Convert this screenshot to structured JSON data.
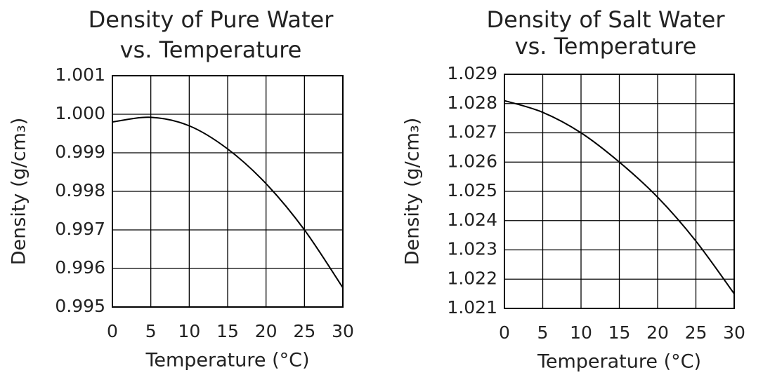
{
  "chart_data": [
    {
      "type": "line",
      "title": [
        "Density of Pure Water",
        "vs. Temperature"
      ],
      "x_label": "Temperature (°C)",
      "y_label": "Density (g/cm₃)",
      "x": [
        0,
        5,
        10,
        15,
        20,
        25,
        30
      ],
      "series": [
        {
          "color": "#000000",
          "values": [
            0.9998,
            0.99992,
            0.9997,
            0.9991,
            0.9982,
            0.997,
            0.9955
          ]
        }
      ],
      "xlim": [
        0,
        30
      ],
      "xticks": [
        0,
        5,
        10,
        15,
        20,
        25,
        30
      ],
      "ylim": [
        0.995,
        1.001
      ],
      "yticks": [
        0.995,
        0.996,
        0.997,
        0.998,
        0.999,
        {
          "value": 1.0,
          "label": "1.000"
        },
        1.001
      ],
      "grid": true
    },
    {
      "type": "line",
      "title": [
        "Density of Salt Water",
        "vs. Temperature"
      ],
      "x_label": "Temperature (°C)",
      "y_label": "Density (g/cm₃)",
      "x": [
        0,
        5,
        10,
        15,
        20,
        25,
        30
      ],
      "series": [
        {
          "color": "#000000",
          "values": [
            1.0281,
            1.0277,
            1.027,
            1.026,
            1.0248,
            1.0233,
            1.0215
          ]
        }
      ],
      "xlim": [
        0,
        30
      ],
      "xticks": [
        0,
        5,
        10,
        15,
        20,
        25,
        30
      ],
      "ylim": [
        1.021,
        1.029
      ],
      "yticks": [
        1.021,
        1.022,
        1.023,
        1.024,
        1.025,
        1.026,
        1.027,
        1.028,
        1.029
      ],
      "grid": true
    }
  ]
}
